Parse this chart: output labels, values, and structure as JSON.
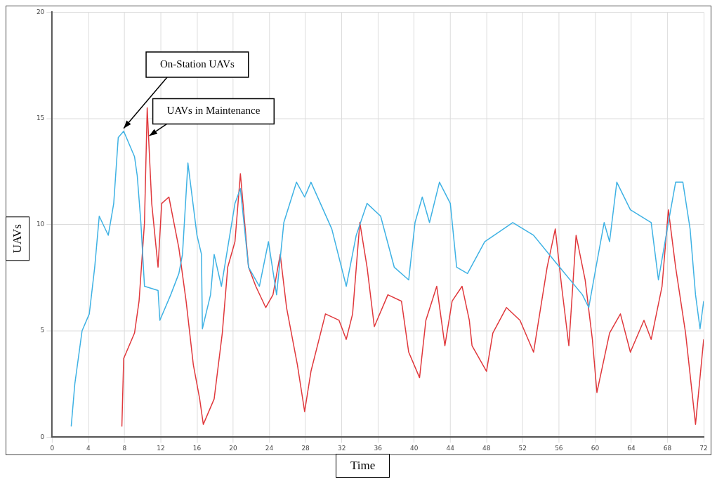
{
  "chart_data": {
    "type": "line",
    "xlabel": "Time",
    "ylabel": "UAVs",
    "xlim": [
      0,
      72
    ],
    "xticks": [
      0,
      4,
      8,
      12,
      16,
      20,
      24,
      28,
      32,
      36,
      40,
      44,
      48,
      52,
      56,
      60,
      64,
      68,
      72
    ],
    "ylim": [
      0,
      20
    ],
    "yticks": [
      0,
      5,
      10,
      15,
      20
    ],
    "grid": true,
    "legend": false,
    "marker": "none",
    "line_style": "solid",
    "series": [
      {
        "name": "On-Station UAVs",
        "color": "#3fb2e4",
        "x": [
          2.1,
          2.5,
          3.3,
          4.1,
          4.7,
          5.2,
          6.2,
          6.8,
          7.3,
          7.9,
          9.1,
          9.4,
          9.8,
          10.2,
          11.7,
          11.9,
          13.1,
          14.0,
          14.4,
          15.0,
          16.0,
          16.5,
          16.6,
          17.5,
          17.9,
          18.7,
          20.2,
          20.8,
          21.7,
          22.9,
          23.9,
          24.8,
          25.6,
          27.0,
          27.9,
          28.6,
          30.9,
          32.5,
          33.6,
          34.8,
          36.3,
          37.8,
          39.4,
          40.1,
          40.9,
          41.7,
          42.8,
          44.0,
          44.7,
          45.9,
          47.8,
          50.9,
          53.2,
          55.5,
          58.6,
          59.3,
          60.1,
          61.0,
          61.6,
          62.4,
          63.9,
          66.2,
          67.0,
          68.1,
          68.9,
          69.7,
          70.5,
          71.1,
          71.6,
          72.0
        ],
        "values": [
          0.5,
          2.5,
          5,
          5.8,
          8,
          10.4,
          9.5,
          11,
          14.1,
          14.4,
          13.2,
          12.3,
          10.1,
          7.1,
          6.9,
          5.5,
          6.7,
          7.7,
          8.6,
          12.9,
          9.5,
          8.6,
          5.1,
          6.7,
          8.6,
          7.1,
          11,
          11.7,
          8,
          7.1,
          9.2,
          6.7,
          10.1,
          12,
          11.3,
          12,
          9.8,
          7.1,
          9.5,
          11,
          10.4,
          8,
          7.4,
          10.1,
          11.3,
          10.1,
          12,
          11,
          8,
          7.7,
          9.2,
          10.1,
          9.5,
          8.3,
          6.7,
          6.1,
          8,
          10.1,
          9.2,
          12,
          10.7,
          10.1,
          7.4,
          10.1,
          12,
          12,
          9.8,
          6.7,
          5.1,
          6.4
        ]
      },
      {
        "name": "UAVs in Maintenance",
        "color": "#e0383c",
        "x": [
          7.7,
          7.9,
          9.1,
          9.6,
          10.2,
          10.5,
          11.0,
          11.7,
          12.1,
          12.9,
          14.0,
          14.8,
          15.6,
          16.3,
          16.7,
          17.9,
          18.8,
          19.4,
          20.2,
          20.8,
          21.7,
          22.5,
          23.6,
          24.4,
          25.2,
          25.9,
          27.1,
          27.9,
          28.6,
          30.2,
          31.7,
          32.5,
          33.2,
          34.0,
          34.8,
          35.6,
          37.1,
          38.6,
          39.4,
          40.6,
          41.3,
          42.5,
          43.4,
          44.2,
          45.3,
          46.1,
          46.4,
          48.0,
          48.7,
          50.2,
          51.7,
          53.2,
          54.7,
          55.6,
          56.3,
          57.1,
          57.9,
          58.9,
          59.7,
          60.2,
          61.6,
          62.8,
          63.9,
          65.4,
          66.2,
          67.4,
          68.1,
          68.9,
          70.0,
          71.1,
          72.0
        ],
        "values": [
          0.5,
          3.7,
          4.9,
          6.4,
          10.1,
          15.5,
          11,
          8,
          11,
          11.3,
          8.9,
          6.4,
          3.4,
          1.8,
          0.6,
          1.8,
          4.9,
          8,
          9.2,
          12.4,
          8,
          7.1,
          6.1,
          6.7,
          8.6,
          6.1,
          3.4,
          1.2,
          3.1,
          5.8,
          5.5,
          4.6,
          5.8,
          10.1,
          8,
          5.2,
          6.7,
          6.4,
          4,
          2.8,
          5.5,
          7.1,
          4.3,
          6.4,
          7.1,
          5.5,
          4.3,
          3.1,
          4.9,
          6.1,
          5.5,
          4,
          8,
          9.8,
          7.1,
          4.3,
          9.5,
          7.4,
          4.6,
          2.1,
          4.9,
          5.8,
          4,
          5.5,
          4.6,
          7.1,
          10.7,
          8,
          4.9,
          0.6,
          4.6
        ]
      }
    ]
  }
}
